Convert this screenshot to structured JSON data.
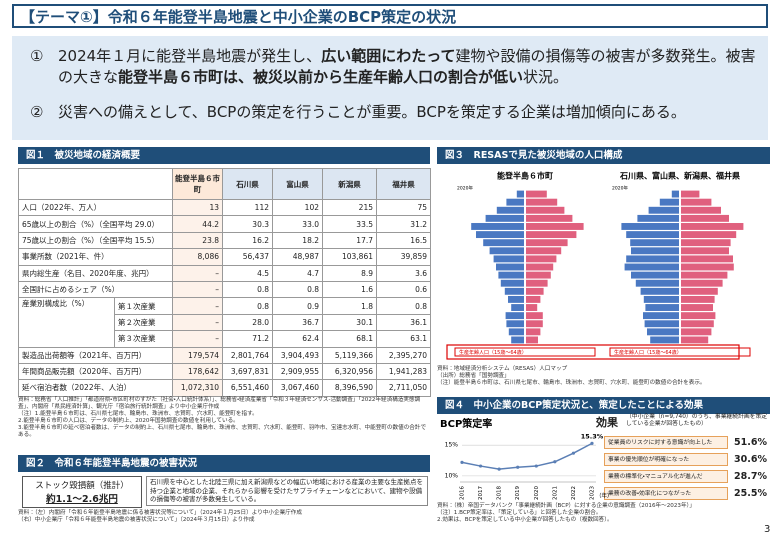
{
  "header": {
    "title": "【テーマ①】令和６年能登半島地震と中小企業のBCP策定の状況"
  },
  "summary": {
    "points": [
      {
        "number": "①",
        "segments": [
          "2024年１月に能登半島地震が発生し、",
          "広い範囲にわたって",
          "建物や設備の損傷等の被害が多数発生。被害の大きな",
          "能登半島６市町は、被災以前から生産年齢人口の割合が低い",
          "状況。"
        ],
        "bold": [
          1,
          3
        ]
      },
      {
        "number": "②",
        "segments": [
          "災害への備えとして、BCPの策定を行うことが重要。BCPを策定する企業は増加傾向にある。"
        ],
        "bold": []
      }
    ]
  },
  "fig1": {
    "title": "図１　被災地域の経済概要",
    "table": {
      "header": [
        "能登半島６市町",
        "石川県",
        "富山県",
        "新潟県",
        "福井県"
      ],
      "industry_group": "産業別構成比（%）",
      "rows": [
        {
          "label": "人口（2022年、万人）",
          "cells": [
            "13",
            "112",
            "102",
            "215",
            "75"
          ]
        },
        {
          "label": "65歳以上の割合（%）（全国平均 29.0）",
          "cells": [
            "44.2",
            "30.3",
            "33.0",
            "33.5",
            "31.2"
          ]
        },
        {
          "label": "75歳以上の割合（%）（全国平均 15.5）",
          "cells": [
            "23.8",
            "16.2",
            "18.2",
            "17.7",
            "16.5"
          ]
        },
        {
          "label": "事業所数（2021年、件）",
          "cells": [
            "8,086",
            "56,437",
            "48,987",
            "103,861",
            "39,859"
          ]
        },
        {
          "label": "県内総生産（名目、2020年度、兆円）",
          "cells": [
            "–",
            "4.5",
            "4.7",
            "8.9",
            "3.6"
          ]
        },
        {
          "label": "全国計に占めるシェア（%）",
          "cells": [
            "–",
            "0.8",
            "0.8",
            "1.6",
            "0.6"
          ]
        },
        {
          "label": "第１次産業",
          "cells": [
            "–",
            "0.8",
            "0.9",
            "1.8",
            "0.8"
          ]
        },
        {
          "label": "第２次産業",
          "cells": [
            "–",
            "28.0",
            "36.7",
            "30.1",
            "36.1"
          ]
        },
        {
          "label": "第３次産業",
          "cells": [
            "–",
            "71.2",
            "62.4",
            "68.1",
            "63.1"
          ]
        },
        {
          "label": "製造品出荷額等（2021年、百万円）",
          "cells": [
            "179,574",
            "2,801,764",
            "3,904,493",
            "5,119,366",
            "2,395,270"
          ]
        },
        {
          "label": "年間商品販売額（2020年、百万円）",
          "cells": [
            "178,642",
            "3,697,831",
            "2,909,955",
            "6,320,956",
            "1,941,283"
          ]
        },
        {
          "label": "延べ宿泊者数（2022年、人泊）",
          "cells": [
            "1,072,310",
            "6,551,460",
            "3,067,460",
            "8,396,590",
            "2,711,050"
          ]
        }
      ]
    },
    "notes": [
      "資料：総務省「人口推計」「都道府県・市区町村のすがた（社会・人口統計体系）」、総務省・経済産業省「令和３年経済センサス-活動調査」「2022年経済構造実態調査」、内閣府「県民経済計算」、観光庁「宿泊旅行統計調査」より中小企業庁作成",
      "（注）1.能登半島６市町は、石川県七尾市、輪島市、珠洲市、志賀町、穴水町、能登町を指す。",
      "2.能登半島６市町の人口は、データの制約上、2020年国勢調査の数値を利用している。",
      "3.能登半島６市町の延べ宿泊者数は、データの制約上、石川県七尾市、輪島市、珠洲市、志賀町、穴水町、能登町、羽咋市、宝達志水町、中能登町の数値の合計である。"
    ]
  },
  "fig2": {
    "title": "図２　令和６年能登半島地震の被害状況",
    "box_label": "ストック毀損額（推計）",
    "box_value": "約1.1～2.6兆円",
    "description": "石川県を中心とした北陸三県に加え新潟県などの幅広い地域における産業の主要な生産拠点を持つ企業と地域の企業、それらから影響を受けたサプライチェーンなどにおいて、建物や設備の損傷等の被害が多数発生している。",
    "notes": [
      "資料：（左）内閣府「令和６年能登半島地震に係る被害状況等について」（2024年１月25日）より中小企業庁作成",
      "（右）中小企業庁「令和６年能登半島地震の被害状況について」（2024年３月15日）より作成"
    ]
  },
  "fig3": {
    "title": "図３　RESASで見た被災地域の人口構成",
    "pyramids": [
      {
        "title": "能登半島６市町",
        "year": "2020年",
        "male": [
          1.6,
          1.9,
          2.2,
          2.3,
          1.6,
          2.0,
          2.4,
          2.9,
          3.2,
          3.5,
          3.8,
          4.3,
          5.1,
          6.0,
          6.6,
          4.8,
          3.4,
          2.2,
          0.9
        ],
        "female": [
          1.5,
          1.8,
          2.1,
          2.1,
          1.4,
          1.8,
          2.2,
          2.7,
          3.1,
          3.4,
          3.8,
          4.4,
          5.2,
          6.3,
          7.2,
          5.8,
          4.8,
          3.9,
          2.6
        ]
      },
      {
        "title": "石川県、富山県、新潟県、福井県",
        "year": "2020年",
        "male": [
          3.6,
          4.0,
          4.3,
          4.5,
          4.2,
          4.4,
          4.8,
          5.4,
          6.0,
          6.8,
          6.6,
          6.0,
          6.1,
          6.6,
          7.2,
          5.2,
          3.8,
          2.4,
          0.9
        ],
        "female": [
          3.4,
          3.8,
          4.1,
          4.3,
          4.0,
          4.2,
          4.6,
          5.2,
          5.8,
          6.6,
          6.5,
          6.0,
          6.2,
          6.9,
          7.8,
          6.0,
          5.0,
          3.8,
          2.3
        ]
      }
    ],
    "box_label": "生産年齢人口（15歳～64歳）",
    "notes": [
      "資料：地域経済分析システム（RESAS）人口マップ",
      "（出所）総務省「国勢調査」",
      "（注）能登半島６市町は、石川県七尾市、輪島市、珠洲市、志賀町、穴水町、能登町の数値の合計を表示。"
    ]
  },
  "fig4": {
    "title": "図４　中小企業のBCP策定状況と、策定したことによる効果",
    "effects": {
      "title": "効果",
      "subtitle": "（中小企業（n=9,740）のうち、事業継続計画を策定している企業が回答したもの）",
      "items": [
        {
          "label": "従業員のリスクに対する意識が向上した",
          "value": "51.6%"
        },
        {
          "label": "事業の優先順位が明確になった",
          "value": "30.6%"
        },
        {
          "label": "業務の標準化・マニュアル化が進んだ",
          "value": "28.7%"
        },
        {
          "label": "業務の改善・効率化につながった",
          "value": "25.5%"
        }
      ]
    },
    "notes": [
      "資料：（株）帝国データバンク「事業継続計画（BCP）に対する企業の意識調査（2016年～2023年）」",
      "（注）1.BCP策定率は、「策定している」と回答した企業の割合。",
      "2.効果は、BCPを策定している中小企業が回答したもの（複数回答）。"
    ]
  },
  "chart_data": {
    "type": "line",
    "title": "BCP策定率",
    "x_label": "（年）",
    "categories": [
      "2016",
      "2017",
      "2018",
      "2019",
      "2020",
      "2021",
      "2022",
      "2023"
    ],
    "values": [
      12.2,
      11.6,
      11.1,
      11.4,
      11.6,
      12.3,
      13.7,
      15.3
    ],
    "value_labels": [
      null,
      null,
      null,
      null,
      null,
      null,
      null,
      "15.3%"
    ],
    "color": "#5b7fb5",
    "ylim": [
      9,
      16.5
    ],
    "yticks": [
      {
        "value": 10,
        "label": "10%"
      },
      {
        "value": 15,
        "label": "15%"
      }
    ],
    "grid": true
  },
  "page_number": "3"
}
